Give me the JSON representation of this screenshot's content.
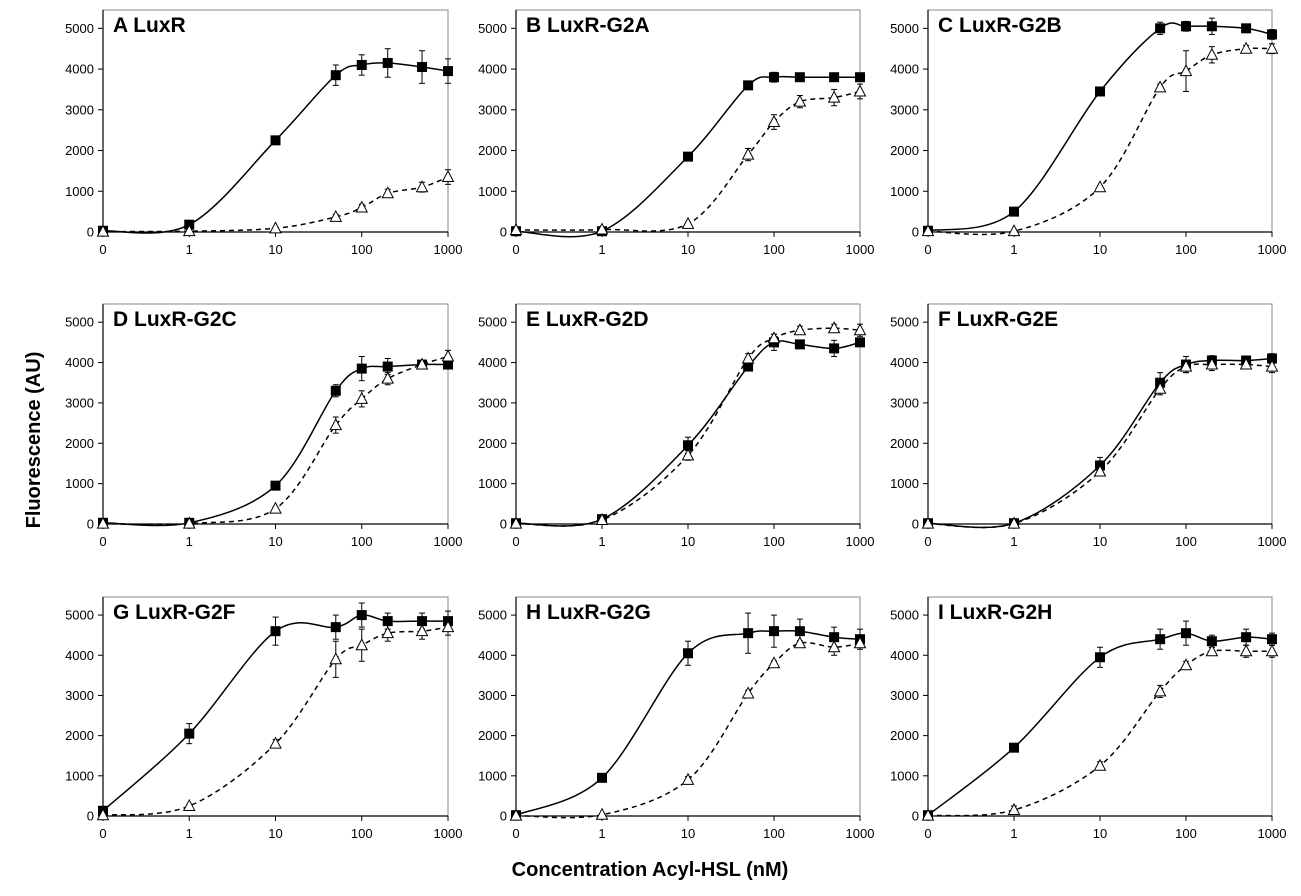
{
  "figure": {
    "ylabel": "Fluorescence (AU)",
    "xlabel": "Concentration Acyl-HSL (nM)"
  },
  "chart_data": [
    {
      "type": "scatter",
      "title": "A  LuxR",
      "x": [
        0,
        1,
        10,
        50,
        100,
        200,
        500,
        1000
      ],
      "ylim": [
        0,
        5000
      ],
      "series": [
        {
          "marker": "filled-square",
          "line": "solid",
          "values": [
            30,
            180,
            2250,
            3850,
            4100,
            4150,
            4050,
            3950
          ],
          "errors": [
            0,
            60,
            80,
            250,
            250,
            350,
            400,
            300
          ]
        },
        {
          "marker": "open-triangle",
          "line": "dashed",
          "values": [
            10,
            20,
            90,
            370,
            600,
            950,
            1100,
            1350
          ],
          "errors": [
            0,
            20,
            30,
            60,
            80,
            100,
            120,
            180
          ]
        }
      ]
    },
    {
      "type": "scatter",
      "title": "B  LuxR-G2A",
      "x": [
        0,
        1,
        10,
        50,
        100,
        200,
        500,
        1000
      ],
      "ylim": [
        0,
        5000
      ],
      "series": [
        {
          "marker": "filled-square",
          "line": "solid",
          "values": [
            20,
            20,
            1850,
            3600,
            3800,
            3800,
            3800,
            3800
          ],
          "errors": [
            0,
            0,
            50,
            50,
            120,
            80,
            50,
            40
          ]
        },
        {
          "marker": "open-triangle",
          "line": "dashed",
          "values": [
            50,
            60,
            200,
            1900,
            2700,
            3200,
            3300,
            3450
          ],
          "errors": [
            0,
            20,
            40,
            150,
            180,
            150,
            200,
            180
          ]
        }
      ]
    },
    {
      "type": "scatter",
      "title": "C  LuxR-G2B",
      "x": [
        0,
        1,
        10,
        50,
        100,
        200,
        500,
        1000
      ],
      "ylim": [
        0,
        5000
      ],
      "series": [
        {
          "marker": "filled-square",
          "line": "solid",
          "values": [
            30,
            500,
            3450,
            5000,
            5050,
            5050,
            5000,
            4850
          ],
          "errors": [
            0,
            60,
            60,
            150,
            120,
            200,
            60,
            120
          ]
        },
        {
          "marker": "open-triangle",
          "line": "dashed",
          "values": [
            20,
            20,
            1100,
            3550,
            3950,
            4350,
            4500,
            4500
          ],
          "errors": [
            0,
            10,
            40,
            80,
            500,
            200,
            80,
            120
          ]
        }
      ]
    },
    {
      "type": "scatter",
      "title": "D  LuxR-G2C",
      "x": [
        0,
        1,
        10,
        50,
        100,
        200,
        500,
        1000
      ],
      "ylim": [
        0,
        5000
      ],
      "series": [
        {
          "marker": "filled-square",
          "line": "solid",
          "values": [
            30,
            30,
            950,
            3300,
            3850,
            3900,
            3950,
            3950
          ],
          "errors": [
            0,
            0,
            60,
            150,
            300,
            200,
            60,
            100
          ]
        },
        {
          "marker": "open-triangle",
          "line": "dashed",
          "values": [
            10,
            10,
            380,
            2450,
            3100,
            3600,
            3950,
            4150
          ],
          "errors": [
            0,
            0,
            40,
            200,
            200,
            150,
            80,
            150
          ]
        }
      ]
    },
    {
      "type": "scatter",
      "title": "E  LuxR-G2D",
      "x": [
        0,
        1,
        10,
        50,
        100,
        200,
        500,
        1000
      ],
      "ylim": [
        0,
        5000
      ],
      "series": [
        {
          "marker": "filled-square",
          "line": "solid",
          "values": [
            20,
            120,
            1950,
            3900,
            4500,
            4450,
            4350,
            4500
          ],
          "errors": [
            0,
            30,
            200,
            100,
            200,
            60,
            200,
            100
          ]
        },
        {
          "marker": "open-triangle",
          "line": "dashed",
          "values": [
            10,
            100,
            1700,
            4100,
            4600,
            4800,
            4850,
            4800
          ],
          "errors": [
            0,
            20,
            120,
            120,
            100,
            100,
            100,
            150
          ]
        }
      ]
    },
    {
      "type": "scatter",
      "title": "F  LuxR-G2E",
      "x": [
        0,
        1,
        10,
        50,
        100,
        200,
        500,
        1000
      ],
      "ylim": [
        0,
        5000
      ],
      "series": [
        {
          "marker": "filled-square",
          "line": "solid",
          "values": [
            20,
            20,
            1450,
            3500,
            3950,
            4050,
            4050,
            4100
          ],
          "errors": [
            0,
            0,
            200,
            250,
            200,
            120,
            100,
            120
          ]
        },
        {
          "marker": "open-triangle",
          "line": "dashed",
          "values": [
            10,
            10,
            1300,
            3350,
            3900,
            3950,
            3950,
            3900
          ],
          "errors": [
            0,
            0,
            100,
            150,
            150,
            150,
            100,
            150
          ]
        }
      ]
    },
    {
      "type": "scatter",
      "title": "G  LuxR-G2F",
      "x": [
        0,
        1,
        10,
        50,
        100,
        200,
        500,
        1000
      ],
      "ylim": [
        0,
        5000
      ],
      "series": [
        {
          "marker": "filled-square",
          "line": "solid",
          "values": [
            130,
            2050,
            4600,
            4700,
            5000,
            4850,
            4850,
            4850
          ],
          "errors": [
            0,
            250,
            350,
            300,
            300,
            200,
            200,
            250
          ]
        },
        {
          "marker": "open-triangle",
          "line": "dashed",
          "values": [
            20,
            250,
            1800,
            3900,
            4250,
            4550,
            4600,
            4700
          ],
          "errors": [
            0,
            40,
            100,
            450,
            400,
            200,
            200,
            200
          ]
        }
      ]
    },
    {
      "type": "scatter",
      "title": "H  LuxR-G2G",
      "x": [
        0,
        1,
        10,
        50,
        100,
        200,
        500,
        1000
      ],
      "ylim": [
        0,
        5000
      ],
      "series": [
        {
          "marker": "filled-square",
          "line": "solid",
          "values": [
            20,
            950,
            4050,
            4550,
            4600,
            4600,
            4450,
            4400
          ],
          "errors": [
            0,
            100,
            300,
            500,
            400,
            300,
            250,
            250
          ]
        },
        {
          "marker": "open-triangle",
          "line": "dashed",
          "values": [
            10,
            30,
            900,
            3050,
            3800,
            4300,
            4200,
            4300
          ],
          "errors": [
            0,
            10,
            80,
            80,
            60,
            60,
            200,
            100
          ]
        }
      ]
    },
    {
      "type": "scatter",
      "title": "I  LuxR-G2H",
      "x": [
        0,
        1,
        10,
        50,
        100,
        200,
        500,
        1000
      ],
      "ylim": [
        0,
        5000
      ],
      "series": [
        {
          "marker": "filled-square",
          "line": "solid",
          "values": [
            20,
            1700,
            3950,
            4400,
            4550,
            4350,
            4450,
            4400
          ],
          "errors": [
            0,
            100,
            250,
            250,
            300,
            150,
            200,
            150
          ]
        },
        {
          "marker": "open-triangle",
          "line": "dashed",
          "values": [
            10,
            150,
            1250,
            3100,
            3750,
            4100,
            4100,
            4100
          ],
          "errors": [
            0,
            100,
            100,
            150,
            100,
            100,
            150,
            150
          ]
        }
      ]
    }
  ]
}
